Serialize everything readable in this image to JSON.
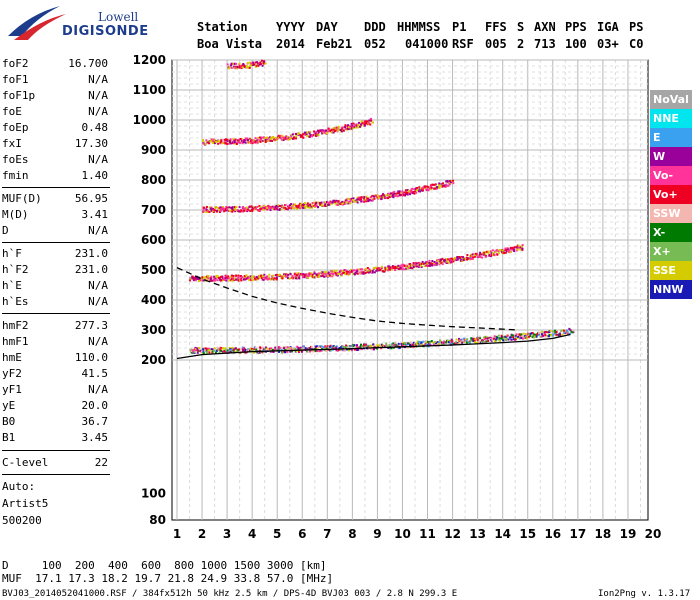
{
  "logo": {
    "top": "Lowell",
    "bottom": "DIGISONDE"
  },
  "header": {
    "labels": [
      "Station",
      "YYYY",
      "DAY",
      "DDD",
      "HHMMSS",
      "P1",
      "FFS",
      "S",
      "AXN",
      "PPS",
      "IGA",
      "PS"
    ],
    "values": [
      "Boa Vista",
      "2014",
      "Feb21",
      "052",
      "041000",
      "RSF",
      "005",
      "2",
      "713",
      "100",
      "03+",
      "C0"
    ]
  },
  "params": [
    {
      "k": "foF2",
      "v": "16.700"
    },
    {
      "k": "foF1",
      "v": "N/A"
    },
    {
      "k": "foF1p",
      "v": "N/A"
    },
    {
      "k": "foE",
      "v": "N/A"
    },
    {
      "k": "foEp",
      "v": "0.48"
    },
    {
      "k": "fxI",
      "v": "17.30"
    },
    {
      "k": "foEs",
      "v": "N/A"
    },
    {
      "k": "fmin",
      "v": "1.40"
    },
    {
      "k": "MUF(D)",
      "v": "56.95"
    },
    {
      "k": "M(D)",
      "v": "3.41"
    },
    {
      "k": "D",
      "v": "N/A"
    },
    {
      "k": "h`F",
      "v": "231.0"
    },
    {
      "k": "h`F2",
      "v": "231.0"
    },
    {
      "k": "h`E",
      "v": "N/A"
    },
    {
      "k": "h`Es",
      "v": "N/A"
    },
    {
      "k": "hmF2",
      "v": "277.3"
    },
    {
      "k": "hmF1",
      "v": "N/A"
    },
    {
      "k": "hmE",
      "v": "110.0"
    },
    {
      "k": "yF2",
      "v": "41.5"
    },
    {
      "k": "yF1",
      "v": "N/A"
    },
    {
      "k": "yE",
      "v": "20.0"
    },
    {
      "k": "B0",
      "v": "36.7"
    },
    {
      "k": "B1",
      "v": "3.45"
    },
    {
      "k": "C-level",
      "v": "22"
    }
  ],
  "autoscaling": {
    "line1": "Auto:",
    "line2": "Artist5",
    "line3": "500200"
  },
  "legend": [
    {
      "label": "NoVal",
      "color": "#a6a6a6"
    },
    {
      "label": "NNE",
      "color": "#00e5ee"
    },
    {
      "label": "E",
      "color": "#3aa0f0"
    },
    {
      "label": "W",
      "color": "#9a009a"
    },
    {
      "label": "Vo-",
      "color": "#ff3399"
    },
    {
      "label": "Vo+",
      "color": "#ee0022"
    },
    {
      "label": "SSW",
      "color": "#f4b6b0"
    },
    {
      "label": "X-",
      "color": "#007a00"
    },
    {
      "label": "X+",
      "color": "#77bb55"
    },
    {
      "label": "SSE",
      "color": "#d4cc00"
    },
    {
      "label": "NNW",
      "color": "#1a1ab4"
    }
  ],
  "footer": {
    "d_row": "D     100  200  400  600  800 1000 1500 3000 [km]",
    "muf_row": "MUF  17.1 17.3 18.2 19.7 21.8 24.9 33.8 57.0 [MHz]",
    "file_info": "BVJ03_2014052041000.RSF / 384fx512h 50 kHz 2.5 km / DPS-4D BVJ03 003 / 2.8 N 299.3 E",
    "version": "Ion2Png v. 1.3.17"
  },
  "chart_data": {
    "type": "scatter",
    "title": "",
    "xlabel": "",
    "ylabel": "",
    "xlim": [
      1,
      20
    ],
    "ylim": [
      80,
      1200
    ],
    "x_ticks": [
      1,
      2,
      3,
      4,
      5,
      6,
      7,
      8,
      9,
      10,
      11,
      12,
      13,
      14,
      15,
      16,
      17,
      18,
      19,
      20
    ],
    "y_ticks": [
      80,
      100,
      200,
      300,
      400,
      500,
      600,
      700,
      800,
      900,
      1000,
      1100,
      1200
    ],
    "grid": true,
    "legend_position": "right",
    "echo_traces": [
      {
        "name": "F2 1-hop",
        "start": [
          1.5,
          235
        ],
        "end": [
          16.8,
          300
        ]
      },
      {
        "name": "F2 2-hop",
        "start": [
          1.5,
          475
        ],
        "end": [
          14.8,
          580
        ]
      },
      {
        "name": "F2 3-hop",
        "start": [
          2.0,
          705
        ],
        "end": [
          12.0,
          795
        ]
      },
      {
        "name": "F2 4-hop",
        "start": [
          2.0,
          930
        ],
        "end": [
          8.8,
          1000
        ]
      },
      {
        "name": "F2 5-hop",
        "start": [
          3.0,
          1182
        ],
        "end": [
          4.5,
          1195
        ]
      }
    ],
    "profile_solid": [
      [
        1,
        205
      ],
      [
        2,
        218
      ],
      [
        4,
        228
      ],
      [
        6,
        233
      ],
      [
        8,
        238
      ],
      [
        10,
        244
      ],
      [
        12,
        250
      ],
      [
        14,
        258
      ],
      [
        15,
        263
      ],
      [
        16,
        272
      ],
      [
        16.7,
        285
      ]
    ],
    "profile_dashed": [
      [
        1,
        508
      ],
      [
        2,
        470
      ],
      [
        3,
        440
      ],
      [
        4,
        412
      ],
      [
        5,
        390
      ],
      [
        6,
        372
      ],
      [
        7,
        356
      ],
      [
        8,
        342
      ],
      [
        9,
        330
      ],
      [
        10,
        322
      ],
      [
        11,
        316
      ],
      [
        12,
        311
      ],
      [
        13,
        307
      ],
      [
        14,
        303
      ],
      [
        14.6,
        300
      ]
    ]
  }
}
